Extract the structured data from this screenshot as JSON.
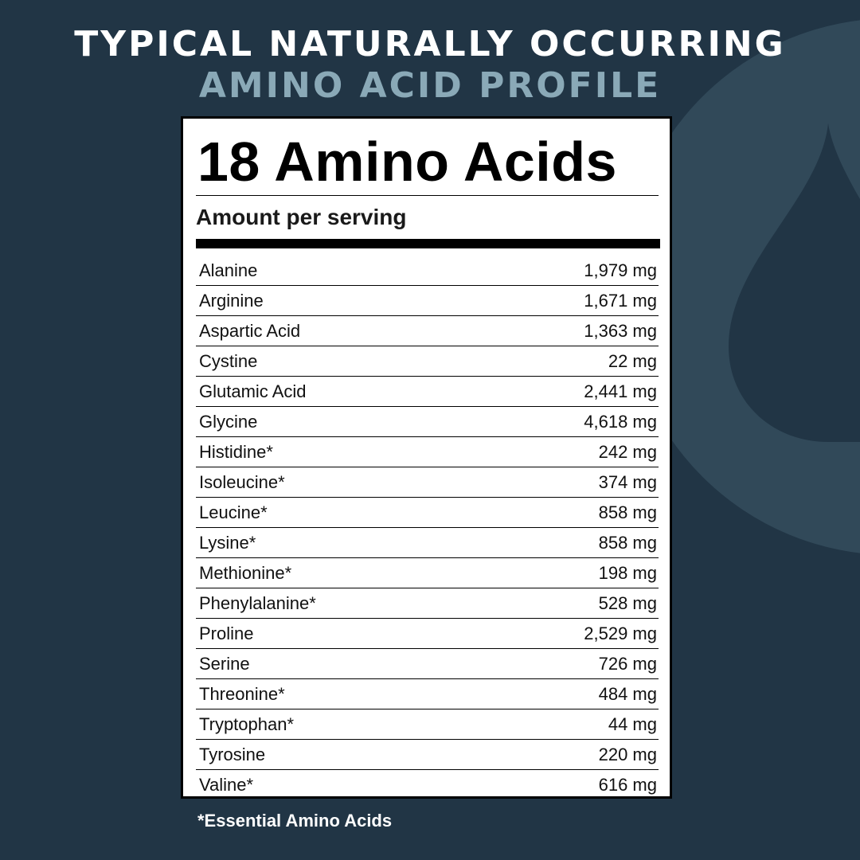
{
  "header": {
    "line1": "TYPICAL NATURALLY OCCURRING",
    "line2": "AMINO ACID PROFILE"
  },
  "colors": {
    "background": "#213545",
    "accent": "#8aa9b7",
    "shape": "#314959"
  },
  "decoration": "water-drop-icon",
  "panel": {
    "title": "18 Amino Acids",
    "subtitle": "Amount per serving",
    "rows": [
      {
        "name": "Alanine",
        "amount": "1,979 mg"
      },
      {
        "name": "Arginine",
        "amount": "1,671 mg"
      },
      {
        "name": "Aspartic Acid",
        "amount": "1,363 mg"
      },
      {
        "name": "Cystine",
        "amount": "22 mg"
      },
      {
        "name": "Glutamic Acid",
        "amount": "2,441 mg"
      },
      {
        "name": "Glycine",
        "amount": "4,618 mg"
      },
      {
        "name": "Histidine*",
        "amount": "242 mg"
      },
      {
        "name": "Isoleucine*",
        "amount": "374 mg"
      },
      {
        "name": "Leucine*",
        "amount": "858 mg"
      },
      {
        "name": "Lysine*",
        "amount": "858 mg"
      },
      {
        "name": "Methionine*",
        "amount": "198 mg"
      },
      {
        "name": "Phenylalanine*",
        "amount": "528 mg"
      },
      {
        "name": "Proline",
        "amount": "2,529 mg"
      },
      {
        "name": "Serine",
        "amount": "726 mg"
      },
      {
        "name": "Threonine*",
        "amount": "484 mg"
      },
      {
        "name": "Tryptophan*",
        "amount": "44 mg"
      },
      {
        "name": "Tyrosine",
        "amount": "220 mg"
      },
      {
        "name": "Valine*",
        "amount": "616 mg"
      }
    ]
  },
  "footnote": "*Essential Amino Acids"
}
